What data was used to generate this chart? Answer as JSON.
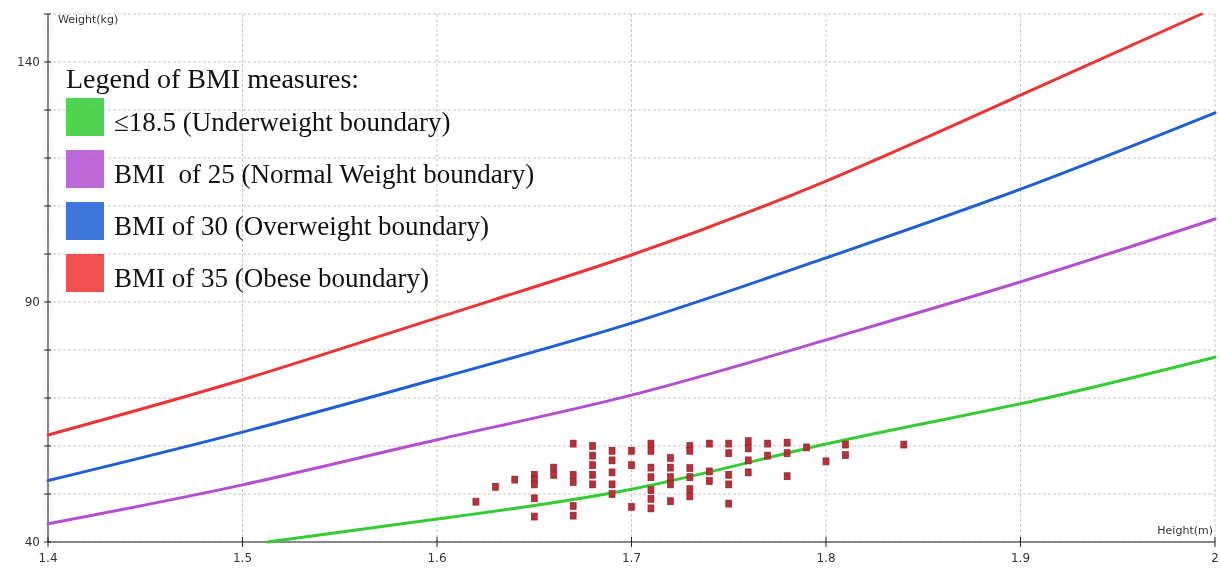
{
  "chart_data": {
    "type": "line",
    "xlabel": "Height(m)",
    "ylabel": "Weight(kg)",
    "legend_title": "Legend of BMI measures:",
    "legend": "top left",
    "grid": true,
    "line_style": "solid",
    "marker": "none",
    "xlim": [
      1.4,
      2
    ],
    "xticks": [
      1.4,
      1.5,
      1.6,
      1.7,
      1.8,
      1.9,
      2
    ],
    "ylim": [
      40,
      150
    ],
    "yticks": [
      40,
      {
        "value": 50,
        "label": null
      },
      {
        "value": 60,
        "label": null
      },
      {
        "value": 70,
        "label": null
      },
      {
        "value": 80,
        "label": null
      },
      90,
      {
        "value": 100,
        "label": null
      },
      {
        "value": 110,
        "label": null
      },
      {
        "value": 120,
        "label": null
      },
      {
        "value": 130,
        "label": null
      },
      140,
      {
        "value": 150,
        "label": null
      }
    ],
    "series": [
      {
        "name": "≤18.5 (Underweight boundary)",
        "color": "#33cc33",
        "x": [
          1.513,
          1.6,
          1.7,
          1.8,
          1.9,
          2
        ],
        "values": [
          40,
          44.8,
          51,
          60.4,
          68.8,
          78.5
        ]
      },
      {
        "name": "BMI  of 25 (Normal Weight boundary)",
        "color": "#b44ed0",
        "x": [
          1.4,
          1.5,
          1.6,
          1.7,
          1.8,
          1.9,
          2
        ],
        "values": [
          43.8,
          51.9,
          61.3,
          70.6,
          82.1,
          94.2,
          107.3
        ]
      },
      {
        "name": "BMI of 30 (Overweight boundary)",
        "color": "#1f5fd6",
        "x": [
          1.4,
          1.5,
          1.6,
          1.7,
          1.8,
          1.9,
          2
        ],
        "values": [
          52.8,
          62.9,
          74,
          85.6,
          99.2,
          113.5,
          129.4
        ]
      },
      {
        "name": "BMI of 35 (Obese boundary)",
        "color": "#ee3333",
        "x": [
          1.4,
          1.5,
          1.6,
          1.7,
          1.8,
          1.9,
          1.993
        ],
        "values": [
          62.3,
          73.8,
          86.7,
          99.8,
          115.2,
          133.1,
          150
        ]
      },
      {
        "type": "scatter",
        "marker": "square",
        "color": "#b8303a",
        "x": [
          1.62,
          1.63,
          1.64,
          1.65,
          1.65,
          1.65,
          1.65,
          1.65,
          1.66,
          1.66,
          1.67,
          1.67,
          1.67,
          1.67,
          1.67,
          1.68,
          1.68,
          1.68,
          1.68,
          1.68,
          1.69,
          1.69,
          1.69,
          1.69,
          1.69,
          1.7,
          1.7,
          1.7,
          1.71,
          1.71,
          1.71,
          1.71,
          1.71,
          1.71,
          1.71,
          1.72,
          1.72,
          1.72,
          1.72,
          1.72,
          1.73,
          1.73,
          1.73,
          1.73,
          1.73,
          1.73,
          1.74,
          1.74,
          1.74,
          1.75,
          1.75,
          1.75,
          1.75,
          1.75,
          1.76,
          1.76,
          1.76,
          1.76,
          1.77,
          1.77,
          1.78,
          1.78,
          1.78,
          1.79,
          1.8,
          1.81,
          1.81,
          1.84
        ],
        "values": [
          48.4,
          51.5,
          53,
          54,
          53,
          52,
          49.1,
          45.3,
          55.5,
          54,
          60.5,
          54,
          52.5,
          47.5,
          45.5,
          60,
          58,
          56,
          54,
          52,
          59,
          57,
          54.5,
          52,
          50,
          59,
          56,
          47.3,
          60.5,
          59,
          55.5,
          53.5,
          50.8,
          49,
          47,
          57.5,
          55.5,
          53.5,
          52,
          48.5,
          60,
          59,
          55.4,
          53.5,
          51,
          49.5,
          60.5,
          54.7,
          52.7,
          60.5,
          58.5,
          54,
          52,
          48,
          61,
          59.5,
          57,
          54.5,
          60.5,
          58,
          60.7,
          58.5,
          53.7,
          59.7,
          56.8,
          60.3,
          58.1,
          60.3
        ]
      }
    ]
  }
}
